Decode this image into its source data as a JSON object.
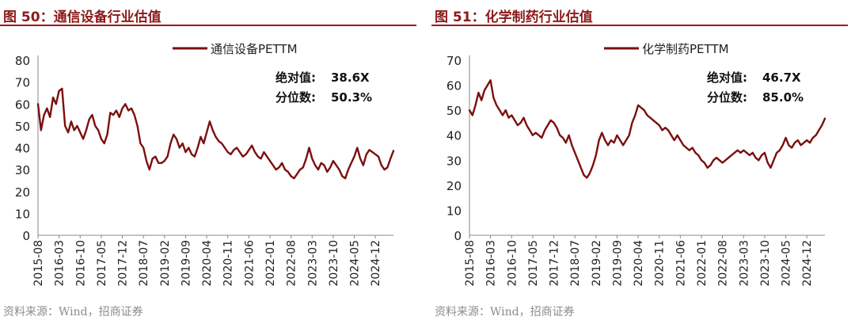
{
  "chart_data": [
    {
      "type": "line",
      "figure_label": "图 50：",
      "title": "通信设备行业估值",
      "legend": "通信设备PETTM",
      "legend_position": "top-center",
      "ylim": [
        0,
        80
      ],
      "yticks": [
        0,
        10,
        20,
        30,
        40,
        50,
        60,
        70,
        80
      ],
      "xticks": [
        "2015-08",
        "2016-03",
        "2016-10",
        "2017-05",
        "2017-12",
        "2018-07",
        "2019-02",
        "2019-09",
        "2020-04",
        "2020-11",
        "2021-06",
        "2022-01",
        "2022-08",
        "2023-03",
        "2023-10",
        "2024-05",
        "2024-12"
      ],
      "xrange": [
        "2015-08",
        "2025-06"
      ],
      "annotation": [
        {
          "label": "绝对值:",
          "value": "38.6X"
        },
        {
          "label": "分位数:",
          "value": "50.3%"
        }
      ],
      "series": [
        {
          "name": "通信设备PETTM",
          "color": "#7b0f0f",
          "points": [
            [
              "2015-08",
              60
            ],
            [
              "2015-09",
              48
            ],
            [
              "2015-10",
              55
            ],
            [
              "2015-11",
              58
            ],
            [
              "2015-12",
              54
            ],
            [
              "2016-01",
              63
            ],
            [
              "2016-02",
              60
            ],
            [
              "2016-03",
              66
            ],
            [
              "2016-04",
              67
            ],
            [
              "2016-05",
              50
            ],
            [
              "2016-06",
              47
            ],
            [
              "2016-07",
              52
            ],
            [
              "2016-08",
              48
            ],
            [
              "2016-09",
              50
            ],
            [
              "2016-10",
              47
            ],
            [
              "2016-11",
              44
            ],
            [
              "2016-12",
              48
            ],
            [
              "2017-01",
              53
            ],
            [
              "2017-02",
              55
            ],
            [
              "2017-03",
              50
            ],
            [
              "2017-04",
              48
            ],
            [
              "2017-05",
              44
            ],
            [
              "2017-06",
              42
            ],
            [
              "2017-07",
              46
            ],
            [
              "2017-08",
              56
            ],
            [
              "2017-09",
              55
            ],
            [
              "2017-10",
              57
            ],
            [
              "2017-11",
              54
            ],
            [
              "2017-12",
              58
            ],
            [
              "2018-01",
              60
            ],
            [
              "2018-02",
              57
            ],
            [
              "2018-03",
              58
            ],
            [
              "2018-04",
              55
            ],
            [
              "2018-05",
              50
            ],
            [
              "2018-06",
              42
            ],
            [
              "2018-07",
              40
            ],
            [
              "2018-08",
              34
            ],
            [
              "2018-09",
              30
            ],
            [
              "2018-10",
              35
            ],
            [
              "2018-11",
              36
            ],
            [
              "2018-12",
              33
            ],
            [
              "2019-01",
              33
            ],
            [
              "2019-02",
              34
            ],
            [
              "2019-03",
              36
            ],
            [
              "2019-04",
              42
            ],
            [
              "2019-05",
              46
            ],
            [
              "2019-06",
              44
            ],
            [
              "2019-07",
              40
            ],
            [
              "2019-08",
              42
            ],
            [
              "2019-09",
              38
            ],
            [
              "2019-10",
              40
            ],
            [
              "2019-11",
              37
            ],
            [
              "2019-12",
              36
            ],
            [
              "2020-01",
              40
            ],
            [
              "2020-02",
              45
            ],
            [
              "2020-03",
              42
            ],
            [
              "2020-04",
              47
            ],
            [
              "2020-05",
              52
            ],
            [
              "2020-06",
              48
            ],
            [
              "2020-07",
              45
            ],
            [
              "2020-08",
              43
            ],
            [
              "2020-09",
              42
            ],
            [
              "2020-10",
              40
            ],
            [
              "2020-11",
              38
            ],
            [
              "2020-12",
              37
            ],
            [
              "2021-01",
              39
            ],
            [
              "2021-02",
              40
            ],
            [
              "2021-03",
              38
            ],
            [
              "2021-04",
              36
            ],
            [
              "2021-05",
              37
            ],
            [
              "2021-06",
              39
            ],
            [
              "2021-07",
              41
            ],
            [
              "2021-08",
              38
            ],
            [
              "2021-09",
              36
            ],
            [
              "2021-10",
              35
            ],
            [
              "2021-11",
              38
            ],
            [
              "2021-12",
              36
            ],
            [
              "2022-01",
              34
            ],
            [
              "2022-02",
              32
            ],
            [
              "2022-03",
              30
            ],
            [
              "2022-04",
              31
            ],
            [
              "2022-05",
              33
            ],
            [
              "2022-06",
              30
            ],
            [
              "2022-07",
              29
            ],
            [
              "2022-08",
              27
            ],
            [
              "2022-09",
              26
            ],
            [
              "2022-10",
              28
            ],
            [
              "2022-11",
              30
            ],
            [
              "2022-12",
              31
            ],
            [
              "2023-01",
              35
            ],
            [
              "2023-02",
              40
            ],
            [
              "2023-03",
              35
            ],
            [
              "2023-04",
              32
            ],
            [
              "2023-05",
              30
            ],
            [
              "2023-06",
              33
            ],
            [
              "2023-07",
              32
            ],
            [
              "2023-08",
              29
            ],
            [
              "2023-09",
              31
            ],
            [
              "2023-10",
              34
            ],
            [
              "2023-11",
              32
            ],
            [
              "2023-12",
              30
            ],
            [
              "2024-01",
              27
            ],
            [
              "2024-02",
              26
            ],
            [
              "2024-03",
              30
            ],
            [
              "2024-04",
              33
            ],
            [
              "2024-05",
              36
            ],
            [
              "2024-06",
              40
            ],
            [
              "2024-07",
              35
            ],
            [
              "2024-08",
              32
            ],
            [
              "2024-09",
              37
            ],
            [
              "2024-10",
              39
            ],
            [
              "2024-11",
              38
            ],
            [
              "2024-12",
              37
            ],
            [
              "2025-01",
              36
            ],
            [
              "2025-02",
              32
            ],
            [
              "2025-03",
              30
            ],
            [
              "2025-04",
              31
            ],
            [
              "2025-05",
              35
            ],
            [
              "2025-06",
              38.6
            ]
          ]
        }
      ]
    },
    {
      "type": "line",
      "figure_label": "图 51：",
      "title": "化学制药行业估值",
      "legend": "化学制药PETTM",
      "legend_position": "top-center",
      "ylim": [
        0,
        70
      ],
      "yticks": [
        0,
        10,
        20,
        30,
        40,
        50,
        60,
        70
      ],
      "xticks": [
        "2015-08",
        "2016-03",
        "2016-10",
        "2017-05",
        "2017-12",
        "2018-07",
        "2019-02",
        "2019-09",
        "2020-04",
        "2020-11",
        "2021-06",
        "2022-01",
        "2022-08",
        "2023-03",
        "2023-10",
        "2024-05",
        "2024-12"
      ],
      "xrange": [
        "2015-08",
        "2025-06"
      ],
      "annotation": [
        {
          "label": "绝对值:",
          "value": "46.7X"
        },
        {
          "label": "分位数:",
          "value": "85.0%"
        }
      ],
      "series": [
        {
          "name": "化学制药PETTM",
          "color": "#7b0f0f",
          "points": [
            [
              "2015-08",
              50
            ],
            [
              "2015-09",
              48
            ],
            [
              "2015-10",
              52
            ],
            [
              "2015-11",
              57
            ],
            [
              "2015-12",
              54
            ],
            [
              "2016-01",
              58
            ],
            [
              "2016-02",
              60
            ],
            [
              "2016-03",
              62
            ],
            [
              "2016-04",
              55
            ],
            [
              "2016-05",
              52
            ],
            [
              "2016-06",
              50
            ],
            [
              "2016-07",
              48
            ],
            [
              "2016-08",
              50
            ],
            [
              "2016-09",
              47
            ],
            [
              "2016-10",
              48
            ],
            [
              "2016-11",
              46
            ],
            [
              "2016-12",
              44
            ],
            [
              "2017-01",
              45
            ],
            [
              "2017-02",
              47
            ],
            [
              "2017-03",
              44
            ],
            [
              "2017-04",
              42
            ],
            [
              "2017-05",
              40
            ],
            [
              "2017-06",
              41
            ],
            [
              "2017-07",
              40
            ],
            [
              "2017-08",
              39
            ],
            [
              "2017-09",
              42
            ],
            [
              "2017-10",
              44
            ],
            [
              "2017-11",
              46
            ],
            [
              "2017-12",
              45
            ],
            [
              "2018-01",
              43
            ],
            [
              "2018-02",
              40
            ],
            [
              "2018-03",
              39
            ],
            [
              "2018-04",
              37
            ],
            [
              "2018-05",
              40
            ],
            [
              "2018-06",
              36
            ],
            [
              "2018-07",
              33
            ],
            [
              "2018-08",
              30
            ],
            [
              "2018-09",
              27
            ],
            [
              "2018-10",
              24
            ],
            [
              "2018-11",
              23
            ],
            [
              "2018-12",
              25
            ],
            [
              "2019-01",
              28
            ],
            [
              "2019-02",
              32
            ],
            [
              "2019-03",
              38
            ],
            [
              "2019-04",
              41
            ],
            [
              "2019-05",
              38
            ],
            [
              "2019-06",
              36
            ],
            [
              "2019-07",
              38
            ],
            [
              "2019-08",
              37
            ],
            [
              "2019-09",
              40
            ],
            [
              "2019-10",
              38
            ],
            [
              "2019-11",
              36
            ],
            [
              "2019-12",
              38
            ],
            [
              "2020-01",
              40
            ],
            [
              "2020-02",
              45
            ],
            [
              "2020-03",
              48
            ],
            [
              "2020-04",
              52
            ],
            [
              "2020-05",
              51
            ],
            [
              "2020-06",
              50
            ],
            [
              "2020-07",
              48
            ],
            [
              "2020-08",
              47
            ],
            [
              "2020-09",
              46
            ],
            [
              "2020-10",
              45
            ],
            [
              "2020-11",
              44
            ],
            [
              "2020-12",
              42
            ],
            [
              "2021-01",
              43
            ],
            [
              "2021-02",
              42
            ],
            [
              "2021-03",
              40
            ],
            [
              "2021-04",
              38
            ],
            [
              "2021-05",
              40
            ],
            [
              "2021-06",
              38
            ],
            [
              "2021-07",
              36
            ],
            [
              "2021-08",
              35
            ],
            [
              "2021-09",
              34
            ],
            [
              "2021-10",
              35
            ],
            [
              "2021-11",
              33
            ],
            [
              "2021-12",
              32
            ],
            [
              "2022-01",
              30
            ],
            [
              "2022-02",
              29
            ],
            [
              "2022-03",
              27
            ],
            [
              "2022-04",
              28
            ],
            [
              "2022-05",
              30
            ],
            [
              "2022-06",
              31
            ],
            [
              "2022-07",
              30
            ],
            [
              "2022-08",
              29
            ],
            [
              "2022-09",
              30
            ],
            [
              "2022-10",
              31
            ],
            [
              "2022-11",
              32
            ],
            [
              "2022-12",
              33
            ],
            [
              "2023-01",
              34
            ],
            [
              "2023-02",
              33
            ],
            [
              "2023-03",
              34
            ],
            [
              "2023-04",
              33
            ],
            [
              "2023-05",
              32
            ],
            [
              "2023-06",
              33
            ],
            [
              "2023-07",
              31
            ],
            [
              "2023-08",
              30
            ],
            [
              "2023-09",
              32
            ],
            [
              "2023-10",
              33
            ],
            [
              "2023-11",
              29
            ],
            [
              "2023-12",
              27
            ],
            [
              "2024-01",
              30
            ],
            [
              "2024-02",
              33
            ],
            [
              "2024-03",
              34
            ],
            [
              "2024-04",
              36
            ],
            [
              "2024-05",
              39
            ],
            [
              "2024-06",
              36
            ],
            [
              "2024-07",
              35
            ],
            [
              "2024-08",
              37
            ],
            [
              "2024-09",
              38
            ],
            [
              "2024-10",
              36
            ],
            [
              "2024-11",
              37
            ],
            [
              "2024-12",
              38
            ],
            [
              "2025-01",
              37
            ],
            [
              "2025-02",
              39
            ],
            [
              "2025-03",
              40
            ],
            [
              "2025-04",
              42
            ],
            [
              "2025-05",
              44
            ],
            [
              "2025-06",
              46.7
            ]
          ]
        }
      ]
    }
  ],
  "source": [
    "资料来源：Wind，招商证券",
    "资料来源：Wind，招商证券"
  ]
}
